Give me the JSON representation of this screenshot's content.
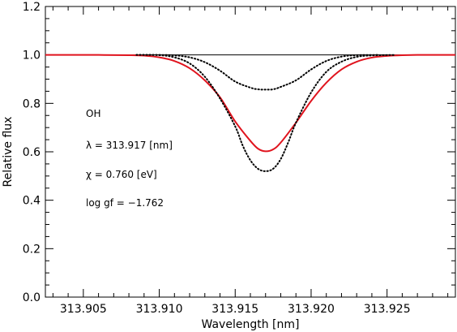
{
  "chart_data": {
    "type": "line",
    "title": "",
    "xlabel": "Wavelength [nm]",
    "ylabel": "Relative flux",
    "xlim": [
      313.9025,
      313.9295
    ],
    "ylim": [
      0.0,
      1.2
    ],
    "x_ticks": [
      313.905,
      313.91,
      313.915,
      313.92,
      313.925
    ],
    "x_tick_labels": [
      "313.905",
      "313.910",
      "313.915",
      "313.920",
      "313.925"
    ],
    "y_ticks": [
      0.0,
      0.2,
      0.4,
      0.6,
      0.8,
      1.0,
      1.2
    ],
    "y_tick_labels": [
      "0.0",
      "0.2",
      "0.4",
      "0.6",
      "0.8",
      "1.0",
      "1.2"
    ],
    "grid": false,
    "annotations": [
      "OH",
      "λ = 313.917 [nm]",
      "χ =  0.760 [eV]",
      "log gf = −1.762"
    ],
    "series": [
      {
        "style": "solid",
        "color": "#000000",
        "x": [
          313.9025,
          313.9295
        ],
        "y": [
          1.0,
          1.0
        ]
      },
      {
        "style": "dotted",
        "color": "#000000",
        "x": [
          313.9085,
          313.91,
          313.911,
          313.912,
          313.913,
          313.914,
          313.915,
          313.916,
          313.9165,
          313.917,
          313.9175,
          313.918,
          313.919,
          313.92,
          313.921,
          313.922,
          313.923,
          313.9245
        ],
        "y": [
          1.0,
          1.0,
          0.998,
          0.99,
          0.97,
          0.935,
          0.89,
          0.865,
          0.858,
          0.857,
          0.858,
          0.868,
          0.895,
          0.94,
          0.975,
          0.993,
          0.999,
          1.0
        ]
      },
      {
        "style": "solid",
        "color": "#e0141e",
        "x": [
          313.9025,
          313.906,
          313.908,
          313.909,
          313.91,
          313.911,
          313.912,
          313.913,
          313.914,
          313.915,
          313.916,
          313.9165,
          313.917,
          313.9175,
          313.918,
          313.919,
          313.92,
          313.921,
          313.922,
          313.923,
          313.924,
          313.925,
          313.926,
          313.927,
          313.9295
        ],
        "y": [
          1.0,
          1.0,
          0.999,
          0.997,
          0.99,
          0.975,
          0.945,
          0.895,
          0.825,
          0.725,
          0.645,
          0.613,
          0.602,
          0.61,
          0.638,
          0.72,
          0.81,
          0.885,
          0.94,
          0.972,
          0.989,
          0.996,
          0.999,
          1.0,
          1.0
        ]
      },
      {
        "style": "dotted",
        "color": "#000000",
        "x": [
          313.9085,
          313.91,
          313.911,
          313.912,
          313.913,
          313.914,
          313.915,
          313.9155,
          313.916,
          313.9165,
          313.917,
          313.9175,
          313.918,
          313.9185,
          313.919,
          313.92,
          313.921,
          313.922,
          313.923,
          313.924,
          313.9255
        ],
        "y": [
          1.0,
          0.999,
          0.99,
          0.965,
          0.91,
          0.82,
          0.705,
          0.625,
          0.565,
          0.53,
          0.52,
          0.53,
          0.57,
          0.64,
          0.72,
          0.845,
          0.93,
          0.972,
          0.992,
          0.998,
          1.0
        ]
      }
    ]
  }
}
